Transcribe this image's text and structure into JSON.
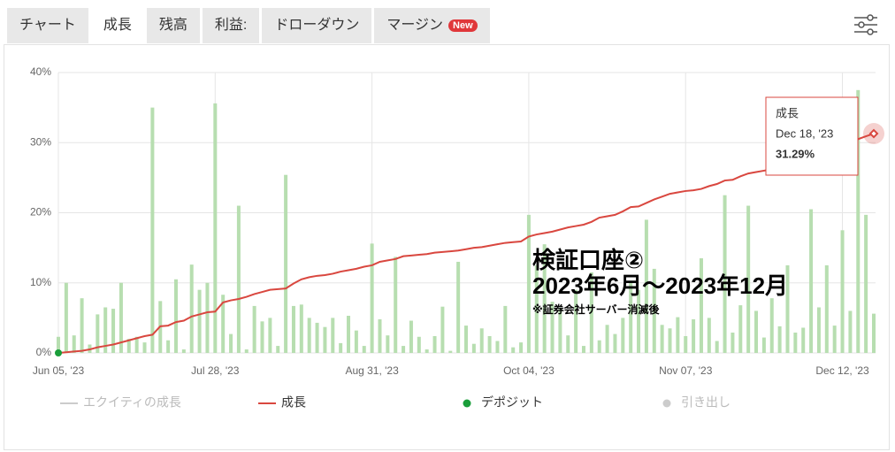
{
  "tabs": [
    "チャート",
    "成長",
    "残高",
    "利益:",
    "ドローダウン",
    "マージン"
  ],
  "active_tab": 1,
  "badge": "New",
  "chart_data": {
    "type": "bar-line",
    "ylim": [
      0,
      40
    ],
    "yticks": [
      {
        "value": 0,
        "label": "0%"
      },
      {
        "value": 10,
        "label": "10%"
      },
      {
        "value": 20,
        "label": "20%"
      },
      {
        "value": 30,
        "label": "30%"
      },
      {
        "value": 40,
        "label": "40%"
      }
    ],
    "grid": true,
    "categories": [
      "Jun 05, '23",
      null,
      null,
      null,
      null,
      null,
      null,
      null,
      null,
      null,
      null,
      null,
      null,
      null,
      null,
      null,
      null,
      null,
      null,
      null,
      "Jul 28, '23",
      null,
      null,
      null,
      null,
      null,
      null,
      null,
      null,
      null,
      null,
      null,
      null,
      null,
      null,
      null,
      null,
      null,
      null,
      null,
      "Aug 31, '23",
      null,
      null,
      null,
      null,
      null,
      null,
      null,
      null,
      null,
      null,
      null,
      null,
      null,
      null,
      null,
      null,
      null,
      null,
      null,
      "Oct 04, '23",
      null,
      null,
      null,
      null,
      null,
      null,
      null,
      null,
      null,
      null,
      null,
      null,
      null,
      null,
      null,
      null,
      null,
      null,
      null,
      "Nov 07, '23",
      null,
      null,
      null,
      null,
      null,
      null,
      null,
      null,
      null,
      null,
      null,
      null,
      null,
      null,
      null,
      null,
      null,
      null,
      null,
      "Dec 12, '23",
      null,
      null,
      null,
      null
    ],
    "bars": {
      "color": "#b7deb0",
      "values": [
        2.3,
        10,
        2.5,
        7.8,
        1.2,
        5.5,
        6.5,
        6.3,
        10,
        2,
        2.3,
        1.5,
        35,
        7.4,
        1.8,
        10.5,
        0.5,
        12.6,
        9,
        10,
        35.6,
        8.3,
        2.7,
        21,
        0.5,
        6.7,
        4.5,
        5,
        1,
        25.4,
        6.7,
        6.9,
        5,
        4.3,
        3.7,
        5,
        1.4,
        5.3,
        3.2,
        1,
        15.6,
        4.8,
        2.5,
        13.7,
        1,
        4.6,
        2.3,
        0.5,
        2.4,
        6.6,
        0.3,
        13,
        3.9,
        1.3,
        3.5,
        2.4,
        1.7,
        6.7,
        0.8,
        1.5,
        19.7,
        12.5,
        15.5,
        7.3,
        6.5,
        2.5,
        9,
        1,
        11.5,
        1.8,
        4,
        2.7,
        5,
        10.3,
        9,
        19,
        12,
        4,
        3.5,
        5.1,
        2.4,
        4.8,
        13.5,
        5,
        1.7,
        22.5,
        2.9,
        6.8,
        21,
        6,
        2.2,
        7.8,
        3.8,
        12.5,
        2.9,
        3.6,
        20.5,
        6.5,
        12.5,
        3.9,
        17.5,
        6,
        37.5,
        19.7,
        5.6
      ]
    },
    "series": [
      {
        "name": "成長",
        "color": "#d9473f",
        "values": [
          0,
          0.1,
          0.2,
          0.3,
          0.5,
          0.8,
          1.0,
          1.2,
          1.5,
          1.8,
          2.1,
          2.4,
          2.6,
          3.8,
          3.9,
          4.4,
          4.6,
          5.2,
          5.5,
          5.8,
          5.9,
          7.2,
          7.5,
          7.7,
          8.0,
          8.4,
          8.7,
          9.0,
          9.1,
          9.2,
          9.9,
          10.5,
          10.8,
          11.0,
          11.1,
          11.3,
          11.6,
          11.8,
          12.0,
          12.3,
          12.5,
          13.0,
          13.2,
          13.4,
          13.8,
          13.9,
          14.0,
          14.1,
          14.3,
          14.4,
          14.5,
          14.6,
          14.8,
          15.0,
          15.1,
          15.3,
          15.5,
          15.7,
          15.8,
          15.9,
          16.6,
          16.9,
          17.1,
          17.3,
          17.6,
          17.9,
          18.1,
          18.3,
          18.7,
          19.3,
          19.5,
          19.7,
          20.2,
          20.8,
          20.9,
          21.4,
          21.9,
          22.3,
          22.7,
          22.9,
          23.1,
          23.2,
          23.4,
          23.8,
          24.1,
          24.6,
          24.7,
          25.2,
          25.6,
          25.8,
          26.0,
          26.2,
          26.5,
          26.8,
          27.1,
          27.4,
          27.7,
          28.0,
          28.3,
          28.6,
          28.9,
          29.2,
          30.5,
          30.9,
          31.29
        ]
      }
    ],
    "deposit": {
      "index": 0,
      "value": 0,
      "color": "#1a9e3a"
    },
    "legend": [
      {
        "name": "エクイティの成長",
        "color": "#cccccc",
        "shape": "line"
      },
      {
        "name": "成長",
        "color": "#d9473f",
        "shape": "line"
      },
      {
        "name": "デポジット",
        "color": "#1a9e3a",
        "shape": "dot"
      },
      {
        "name": "引き出し",
        "color": "#cccccc",
        "shape": "dot"
      }
    ],
    "tooltip": {
      "index": 104,
      "date": "Dec 18, '23",
      "value_label": "31.29%"
    },
    "annotations": [
      "検証口座②",
      "2023年6月～2023年12月",
      "※証券会社サーバー消滅後"
    ]
  }
}
